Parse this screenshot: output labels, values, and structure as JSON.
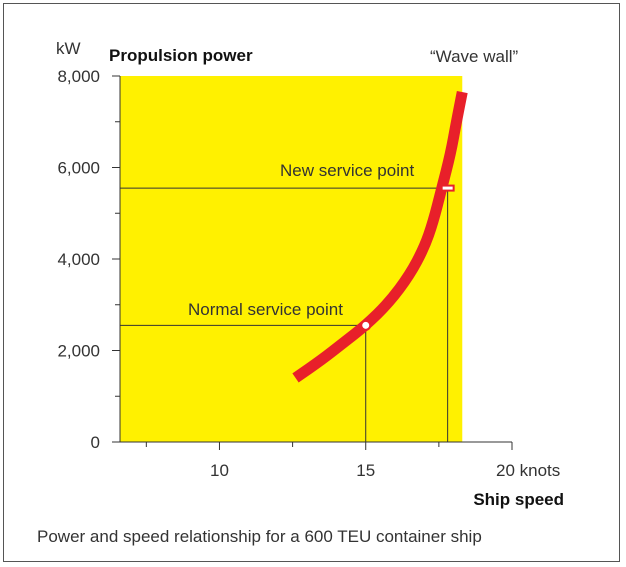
{
  "chart_data": {
    "type": "line",
    "title": "Propulsion power",
    "ylabel_unit": "kW",
    "xlabel": "Ship speed",
    "x_tick_labels": [
      "10",
      "15",
      "20 knots"
    ],
    "x_ticks": [
      10,
      15,
      20
    ],
    "y_tick_labels": [
      "0",
      "2,000",
      "4,000",
      "6,000",
      "8,000"
    ],
    "y_ticks": [
      0,
      2000,
      4000,
      6000,
      8000
    ],
    "xlim": [
      6.6,
      20
    ],
    "ylim": [
      0,
      8000
    ],
    "grid": false,
    "series": [
      {
        "points": [
          {
            "x": 12.6,
            "y": 1400
          },
          {
            "x": 13.5,
            "y": 1800
          },
          {
            "x": 14.2,
            "y": 2150
          },
          {
            "x": 15.0,
            "y": 2550
          },
          {
            "x": 15.8,
            "y": 3050
          },
          {
            "x": 16.5,
            "y": 3650
          },
          {
            "x": 17.0,
            "y": 4250
          },
          {
            "x": 17.3,
            "y": 4800
          },
          {
            "x": 17.6,
            "y": 5550
          },
          {
            "x": 17.9,
            "y": 6300
          },
          {
            "x": 18.1,
            "y": 7000
          },
          {
            "x": 18.3,
            "y": 7650
          }
        ]
      }
    ],
    "shaded_region": {
      "x_from": 6.6,
      "x_to": 18.3,
      "y_from": 0,
      "y_to": 8000
    },
    "annotations": [
      {
        "label": "Normal service point",
        "x": 15.0,
        "y": 2550
      },
      {
        "label": "New service  point",
        "x": 17.8,
        "y": 5550
      },
      {
        "label": "“Wave wall”",
        "x": 18.3,
        "y": 8000
      }
    ],
    "colors": {
      "region": "#fff100",
      "curve": "#e8202a",
      "axis": "#333333",
      "marker_fill": "#ffffff"
    }
  },
  "caption": "Power and speed relationship for a 600 TEU container ship"
}
